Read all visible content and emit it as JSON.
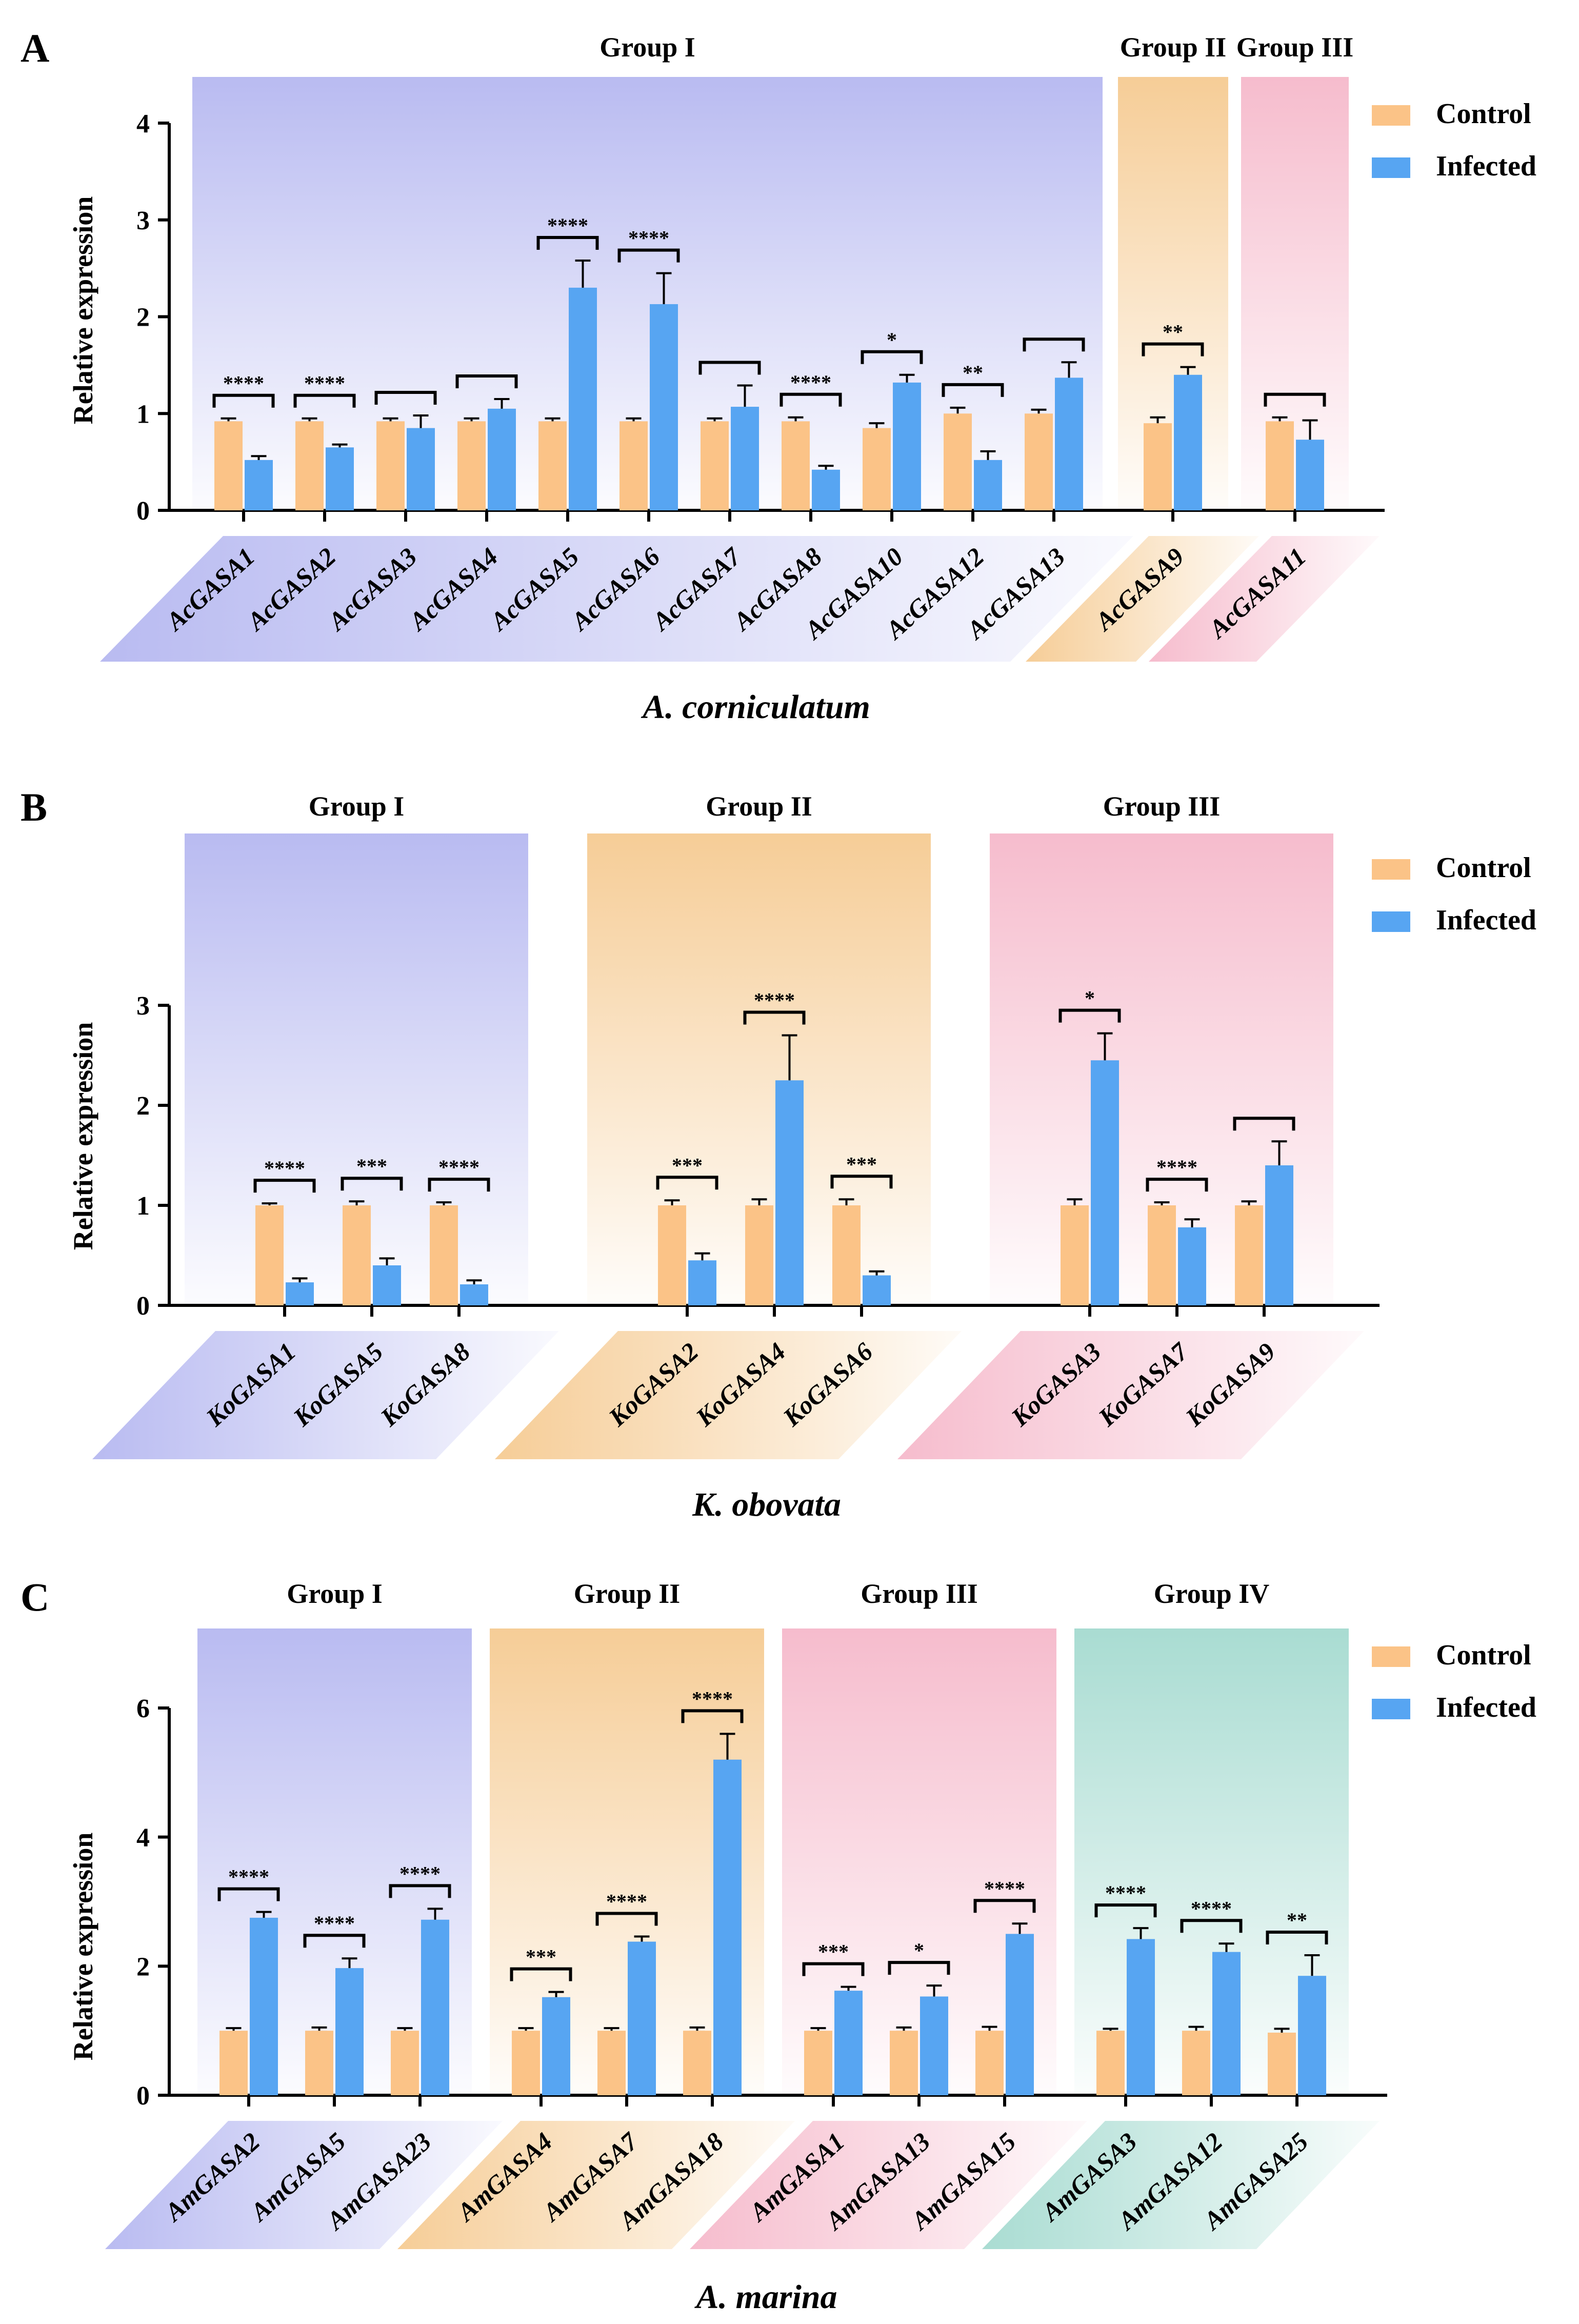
{
  "colors": {
    "control": "#FBC387",
    "infected": "#57A5F2",
    "axis": "#000000",
    "group_I": "#B9BBF1",
    "group_II": "#F6CD97",
    "group_III": "#F6BCCD",
    "group_IV": "#A9DCD2"
  },
  "legend": {
    "control": "Control",
    "infected": "Infected"
  },
  "chart_data": [
    {
      "type": "bar",
      "panel": "A",
      "species": "A. corniculatum",
      "ylabel": "Relative expression",
      "ylim": [
        0,
        4
      ],
      "yticks": [
        0,
        1,
        2,
        3,
        4
      ],
      "legend": [
        "Control",
        "Infected"
      ],
      "groups": [
        {
          "name": "Group I",
          "genes": [
            "AcGASA1",
            "AcGASA2",
            "AcGASA3",
            "AcGASA4",
            "AcGASA5",
            "AcGASA6",
            "AcGASA7",
            "AcGASA8",
            "AcGASA10",
            "AcGASA12",
            "AcGASA13"
          ],
          "control": [
            0.92,
            0.92,
            0.92,
            0.92,
            0.92,
            0.92,
            0.92,
            0.92,
            0.85,
            1.0,
            1.0
          ],
          "control_err": [
            0.03,
            0.03,
            0.03,
            0.03,
            0.03,
            0.03,
            0.03,
            0.04,
            0.05,
            0.06,
            0.04
          ],
          "infected": [
            0.52,
            0.65,
            0.85,
            1.05,
            2.3,
            2.13,
            1.07,
            0.42,
            1.32,
            0.52,
            1.37
          ],
          "infected_err": [
            0.04,
            0.03,
            0.13,
            0.1,
            0.28,
            0.32,
            0.22,
            0.04,
            0.08,
            0.09,
            0.16
          ],
          "sig": [
            "****",
            "****",
            "",
            "",
            "****",
            "****",
            "",
            "****",
            "*",
            "**",
            ""
          ]
        },
        {
          "name": "Group II",
          "genes": [
            "AcGASA9"
          ],
          "control": [
            0.9
          ],
          "control_err": [
            0.06
          ],
          "infected": [
            1.4
          ],
          "infected_err": [
            0.08
          ],
          "sig": [
            "**"
          ]
        },
        {
          "name": "Group III",
          "genes": [
            "AcGASA11"
          ],
          "control": [
            0.92
          ],
          "control_err": [
            0.04
          ],
          "infected": [
            0.73
          ],
          "infected_err": [
            0.2
          ],
          "sig": [
            ""
          ]
        }
      ]
    },
    {
      "type": "bar",
      "panel": "B",
      "species": "K. obovata",
      "ylabel": "Relative expression",
      "ylim": [
        0,
        3
      ],
      "yticks": [
        0,
        1,
        2,
        3
      ],
      "legend": [
        "Control",
        "Infected"
      ],
      "groups": [
        {
          "name": "Group I",
          "genes": [
            "KoGASA1",
            "KoGASA5",
            "KoGASA8"
          ],
          "control": [
            1.0,
            1.0,
            1.0
          ],
          "control_err": [
            0.02,
            0.04,
            0.03
          ],
          "infected": [
            0.23,
            0.4,
            0.21
          ],
          "infected_err": [
            0.04,
            0.07,
            0.04
          ],
          "sig": [
            "****",
            "***",
            "****"
          ]
        },
        {
          "name": "Group II",
          "genes": [
            "KoGASA2",
            "KoGASA4",
            "KoGASA6"
          ],
          "control": [
            1.0,
            1.0,
            1.0
          ],
          "control_err": [
            0.05,
            0.06,
            0.06
          ],
          "infected": [
            0.45,
            2.25,
            0.3
          ],
          "infected_err": [
            0.07,
            0.45,
            0.04
          ],
          "sig": [
            "***",
            "****",
            "***"
          ]
        },
        {
          "name": "Group III",
          "genes": [
            "KoGASA3",
            "KoGASA7",
            "KoGASA9"
          ],
          "control": [
            1.0,
            1.0,
            1.0
          ],
          "control_err": [
            0.06,
            0.03,
            0.04
          ],
          "infected": [
            2.45,
            0.78,
            1.4
          ],
          "infected_err": [
            0.27,
            0.08,
            0.24
          ],
          "sig": [
            "*",
            "****",
            ""
          ]
        }
      ]
    },
    {
      "type": "bar",
      "panel": "C",
      "species": "A. marina",
      "ylabel": "Relative expression",
      "ylim": [
        0,
        6
      ],
      "yticks": [
        0,
        2,
        4,
        6
      ],
      "legend": [
        "Control",
        "Infected"
      ],
      "groups": [
        {
          "name": "Group I",
          "genes": [
            "AmGASA2",
            "AmGASA5",
            "AmGASA23"
          ],
          "control": [
            1.0,
            1.0,
            1.0
          ],
          "control_err": [
            0.04,
            0.05,
            0.04
          ],
          "infected": [
            2.75,
            1.97,
            2.72
          ],
          "infected_err": [
            0.09,
            0.15,
            0.17
          ],
          "sig": [
            "****",
            "****",
            "****"
          ]
        },
        {
          "name": "Group II",
          "genes": [
            "AmGASA4",
            "AmGASA7",
            "AmGASA18"
          ],
          "control": [
            1.0,
            1.0,
            1.0
          ],
          "control_err": [
            0.04,
            0.04,
            0.05
          ],
          "infected": [
            1.52,
            2.38,
            5.2
          ],
          "infected_err": [
            0.08,
            0.08,
            0.4
          ],
          "sig": [
            "***",
            "****",
            "****"
          ]
        },
        {
          "name": "Group III",
          "genes": [
            "AmGASA1",
            "AmGASA13",
            "AmGASA15"
          ],
          "control": [
            1.0,
            1.0,
            1.0
          ],
          "control_err": [
            0.04,
            0.05,
            0.06
          ],
          "infected": [
            1.62,
            1.53,
            2.5
          ],
          "infected_err": [
            0.06,
            0.17,
            0.16
          ],
          "sig": [
            "***",
            "*",
            "****"
          ]
        },
        {
          "name": "Group IV",
          "genes": [
            "AmGASA3",
            "AmGASA12",
            "AmGASA25"
          ],
          "control": [
            1.0,
            1.0,
            0.97
          ],
          "control_err": [
            0.03,
            0.06,
            0.06
          ],
          "infected": [
            2.42,
            2.22,
            1.85
          ],
          "infected_err": [
            0.17,
            0.13,
            0.32
          ],
          "sig": [
            "****",
            "****",
            "**"
          ]
        }
      ]
    }
  ]
}
